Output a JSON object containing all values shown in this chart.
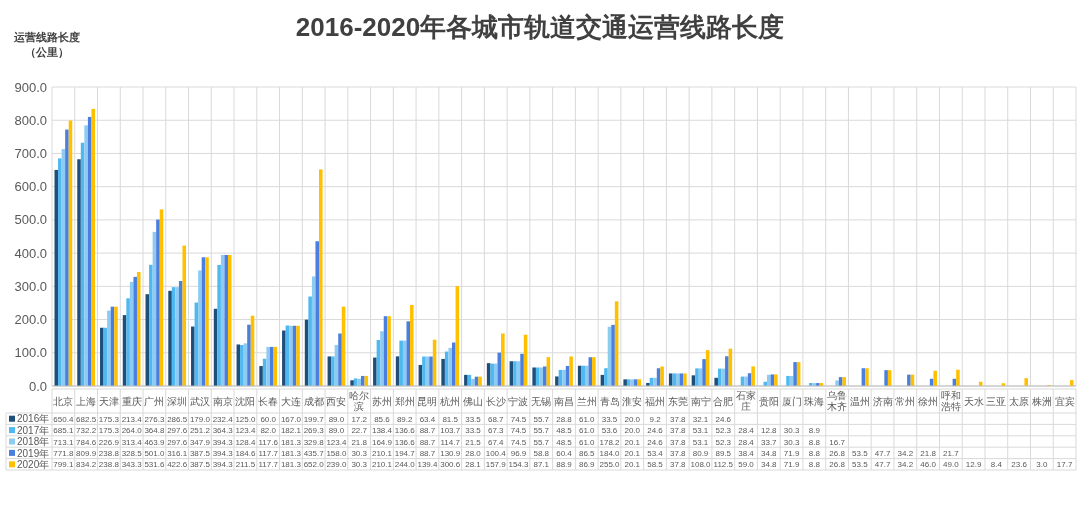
{
  "chart_data": {
    "type": "bar",
    "title": "2016-2020年各城市轨道交通运营线路长度",
    "ylabel": "运营线路长度（公里）",
    "categories": [
      "北京",
      "上海",
      "天津",
      "重庆",
      "广州",
      "深圳",
      "武汉",
      "南京",
      "沈阳",
      "长春",
      "大连",
      "成都",
      "西安",
      "哈尔滨",
      "苏州",
      "郑州",
      "昆明",
      "杭州",
      "佛山",
      "长沙",
      "宁波",
      "无锡",
      "南昌",
      "兰州",
      "青岛",
      "淮安",
      "福州",
      "东莞",
      "南宁",
      "合肥",
      "石家庄",
      "贵阳",
      "厦门",
      "珠海",
      "乌鲁木齐",
      "温州",
      "济南",
      "常州",
      "徐州",
      "呼和浩特",
      "天水",
      "三亚",
      "太原",
      "株洲",
      "宜宾"
    ],
    "series": [
      {
        "name": "2016年",
        "color": "#1f4e79",
        "values": [
          650.4,
          682.5,
          175.3,
          213.4,
          276.3,
          286.5,
          179.0,
          232.4,
          125.0,
          60.0,
          167.0,
          199.7,
          89.0,
          17.2,
          85.6,
          89.2,
          63.4,
          81.5,
          33.5,
          68.7,
          74.5,
          55.7,
          28.8,
          61.0,
          33.5,
          20.0,
          9.2,
          37.8,
          32.1,
          24.6,
          null,
          null,
          null,
          null,
          null,
          null,
          null,
          null,
          null,
          null,
          null,
          null,
          null,
          null,
          null
        ],
        "value_labels": [
          "650.4",
          "682.5",
          "175.3",
          "213.4",
          "276.3",
          "286.5",
          "179.0",
          "232.4",
          "125.0",
          "60.0",
          "167.0",
          "199.7",
          "89.0",
          "17.2",
          "85.6",
          "89.2",
          "63.4",
          "81.5",
          "33.5",
          "68.7",
          "74.5",
          "55.7",
          "28.8",
          "61.0",
          "33.5",
          "20.0",
          "9.2",
          "37.8",
          "32.1",
          "24.6",
          null,
          null,
          null,
          null,
          null,
          null,
          null,
          null,
          null,
          null,
          null,
          null,
          null,
          null,
          null
        ]
      },
      {
        "name": "2017年",
        "color": "#4fb8f0",
        "values": [
          685.1,
          732.2,
          175.3,
          264.0,
          364.8,
          297.6,
          251.2,
          364.3,
          123.4,
          82.0,
          182.1,
          269.3,
          89.0,
          22.7,
          138.4,
          136.6,
          88.7,
          103.7,
          33.5,
          67.3,
          74.5,
          55.7,
          48.5,
          61.0,
          53.6,
          20.0,
          24.6,
          37.8,
          53.1,
          52.3,
          28.4,
          12.8,
          30.3,
          8.9,
          null,
          null,
          null,
          null,
          null,
          null,
          null,
          null,
          null,
          null,
          null
        ],
        "value_labels": [
          "685.1",
          "732.2",
          "175.3",
          "264.0",
          "364.8",
          "297.6",
          "251.2",
          "364.3",
          "123.4",
          "82.0",
          "182.1",
          "269.3",
          "89.0",
          "22.7",
          "138.4",
          "136.6",
          "88.7",
          "103.7",
          "33.5",
          "67.3",
          "74.5",
          "55.7",
          "48.5",
          "61.0",
          "53.6",
          "20.0",
          "24.6",
          "37.8",
          "53.1",
          "52.3",
          "28.4",
          "12.8",
          "30.3",
          "8.9",
          null,
          null,
          null,
          null,
          null,
          null,
          null,
          null,
          null,
          null,
          null
        ]
      },
      {
        "name": "2018年",
        "color": "#8ecbf2",
        "values": [
          713.1,
          784.6,
          226.9,
          313.4,
          463.9,
          297.6,
          347.9,
          394.3,
          128.4,
          117.6,
          181.3,
          329.8,
          123.4,
          21.8,
          164.9,
          136.6,
          88.7,
          114.7,
          21.5,
          67.4,
          74.5,
          55.7,
          48.5,
          61.0,
          178.2,
          20.1,
          24.6,
          37.8,
          53.1,
          52.3,
          28.4,
          33.7,
          30.3,
          8.8,
          16.7,
          null,
          null,
          null,
          null,
          null,
          null,
          null,
          null,
          null,
          null
        ],
        "value_labels": [
          "713.1",
          "784.6",
          "226.9",
          "313.4",
          "463.9",
          "297.6",
          "347.9",
          "394.3",
          "128.4",
          "117.6",
          "181.3",
          "329.8",
          "123.4",
          "21.8",
          "164.9",
          "136.6",
          "88.7",
          "114.7",
          "21.5",
          "67.4",
          "74.5",
          "55.7",
          "48.5",
          "61.0",
          "178.2",
          "20.1",
          "24.6",
          "37.8",
          "53.1",
          "52.3",
          "28.4",
          "33.7",
          "30.3",
          "8.8",
          "16.7",
          null,
          null,
          null,
          null,
          null,
          null,
          null,
          null,
          null,
          null
        ]
      },
      {
        "name": "2019年",
        "color": "#4a7fe0",
        "values": [
          771.8,
          809.9,
          238.8,
          328.5,
          501.0,
          316.1,
          387.5,
          394.3,
          184.6,
          117.7,
          181.3,
          435.7,
          158.0,
          30.3,
          210.1,
          194.7,
          88.7,
          130.9,
          28.0,
          100.4,
          96.9,
          58.8,
          60.4,
          86.5,
          184.0,
          20.1,
          53.4,
          37.8,
          80.9,
          89.5,
          38.4,
          34.8,
          71.9,
          8.8,
          26.8,
          53.5,
          47.7,
          34.2,
          21.8,
          21.7,
          null,
          null,
          null,
          null,
          null
        ],
        "value_labels": [
          "771.8",
          "809.9",
          "238.8",
          "328.5",
          "501.0",
          "316.1",
          "387.5",
          "394.3",
          "184.6",
          "117.7",
          "181.3",
          "435.7",
          "158.0",
          "30.3",
          "210.1",
          "194.7",
          "88.7",
          "130.9",
          "28.0",
          "100.4",
          "96.9",
          "58.8",
          "60.4",
          "86.5",
          "184.0",
          "20.1",
          "53.4",
          "37.8",
          "80.9",
          "89.5",
          "38.4",
          "34.8",
          "71.9",
          "8.8",
          "26.8",
          "53.5",
          "47.7",
          "34.2",
          "21.8",
          "21.7",
          null,
          null,
          null,
          null,
          null
        ]
      },
      {
        "name": "2020年",
        "color": "#ffc000",
        "values": [
          799.1,
          834.2,
          238.8,
          343.3,
          531.6,
          422.6,
          387.5,
          394.3,
          211.5,
          117.7,
          181.3,
          652.0,
          239.0,
          30.3,
          210.1,
          244.0,
          139.4,
          300.6,
          28.1,
          157.9,
          154.3,
          87.1,
          88.9,
          86.9,
          255.0,
          20.1,
          58.5,
          37.8,
          108.0,
          112.5,
          59.0,
          34.8,
          71.9,
          8.8,
          26.8,
          53.5,
          47.7,
          34.2,
          46.0,
          49.0,
          12.9,
          8.4,
          23.6,
          3.0,
          17.7
        ],
        "value_labels": [
          "799.1",
          "834.2",
          "238.8",
          "343.3",
          "531.6",
          "422.6",
          "387.5",
          "394.3",
          "211.5",
          "117.7",
          "181.3",
          "652.0",
          "239.0",
          "30.3",
          "210.1",
          "244.0",
          "139.4",
          "300.6",
          "28.1",
          "157.9",
          "154.3",
          "87.1",
          "88.9",
          "86.9",
          "255.0",
          "20.1",
          "58.5",
          "37.8",
          "108.0",
          "112.5",
          "59.0",
          "34.8",
          "71.9",
          "8.8",
          "26.8",
          "53.5",
          "47.7",
          "34.2",
          "46.0",
          "49.0",
          "12.9",
          "8.4",
          "23.6",
          "3.0",
          "17.7"
        ]
      }
    ],
    "ylim": [
      0,
      900
    ],
    "yticks": [
      {
        "value": 0,
        "label": "0.0"
      },
      {
        "value": 100,
        "label": "100.0"
      },
      {
        "value": 200,
        "label": "200.0"
      },
      {
        "value": 300,
        "label": "300.0"
      },
      {
        "value": 400,
        "label": "400.0"
      },
      {
        "value": 500,
        "label": "500.0"
      },
      {
        "value": 600,
        "label": "600.0"
      },
      {
        "value": 700,
        "label": "700.0"
      },
      {
        "value": 800,
        "label": "800.0"
      },
      {
        "value": 900,
        "label": "900.0"
      }
    ],
    "grid": true,
    "legend": "bottom"
  }
}
